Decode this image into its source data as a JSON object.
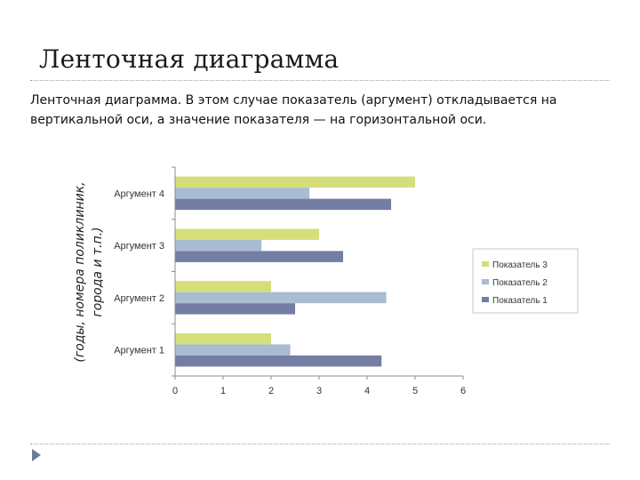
{
  "slide": {
    "title": "Ленточная диаграмма",
    "body_line1": "Ленточная диаграмма. В этом случае показатель (аргумент) откладывается на",
    "body_line2": "вертикальной оси, а значение показателя — на горизонтальной оси."
  },
  "colors": {
    "Показатель 3": "#d4df7c",
    "Показатель 2": "#a8bcd2",
    "Показатель 1": "#747da3",
    "axis": "#8c8c8c",
    "legend_border": "#c8c8c8",
    "nav_arrow": "#6b7d95"
  },
  "icons": {
    "nav": "triangle-right-icon"
  },
  "chart_data": {
    "type": "bar",
    "orientation": "horizontal",
    "categories": [
      "Аргумент 1",
      "Аргумент 2",
      "Аргумент 3",
      "Аргумент 4"
    ],
    "series": [
      {
        "name": "Показатель 1",
        "values": [
          4.3,
          2.5,
          3.5,
          4.5
        ]
      },
      {
        "name": "Показатель 2",
        "values": [
          2.4,
          4.4,
          1.8,
          2.8
        ]
      },
      {
        "name": "Показатель 3",
        "values": [
          2.0,
          2.0,
          3.0,
          5.0
        ]
      }
    ],
    "xlim": [
      0,
      6
    ],
    "xticks": [
      "0",
      "1",
      "2",
      "3",
      "4",
      "5",
      "6"
    ],
    "ylabel_line1": "(годы, номера поликлиник,",
    "ylabel_line2": "города и т.п.)",
    "legend": [
      "Показатель 3",
      "Показатель 2",
      "Показатель 1"
    ],
    "legend_position": "right",
    "grid": false
  }
}
